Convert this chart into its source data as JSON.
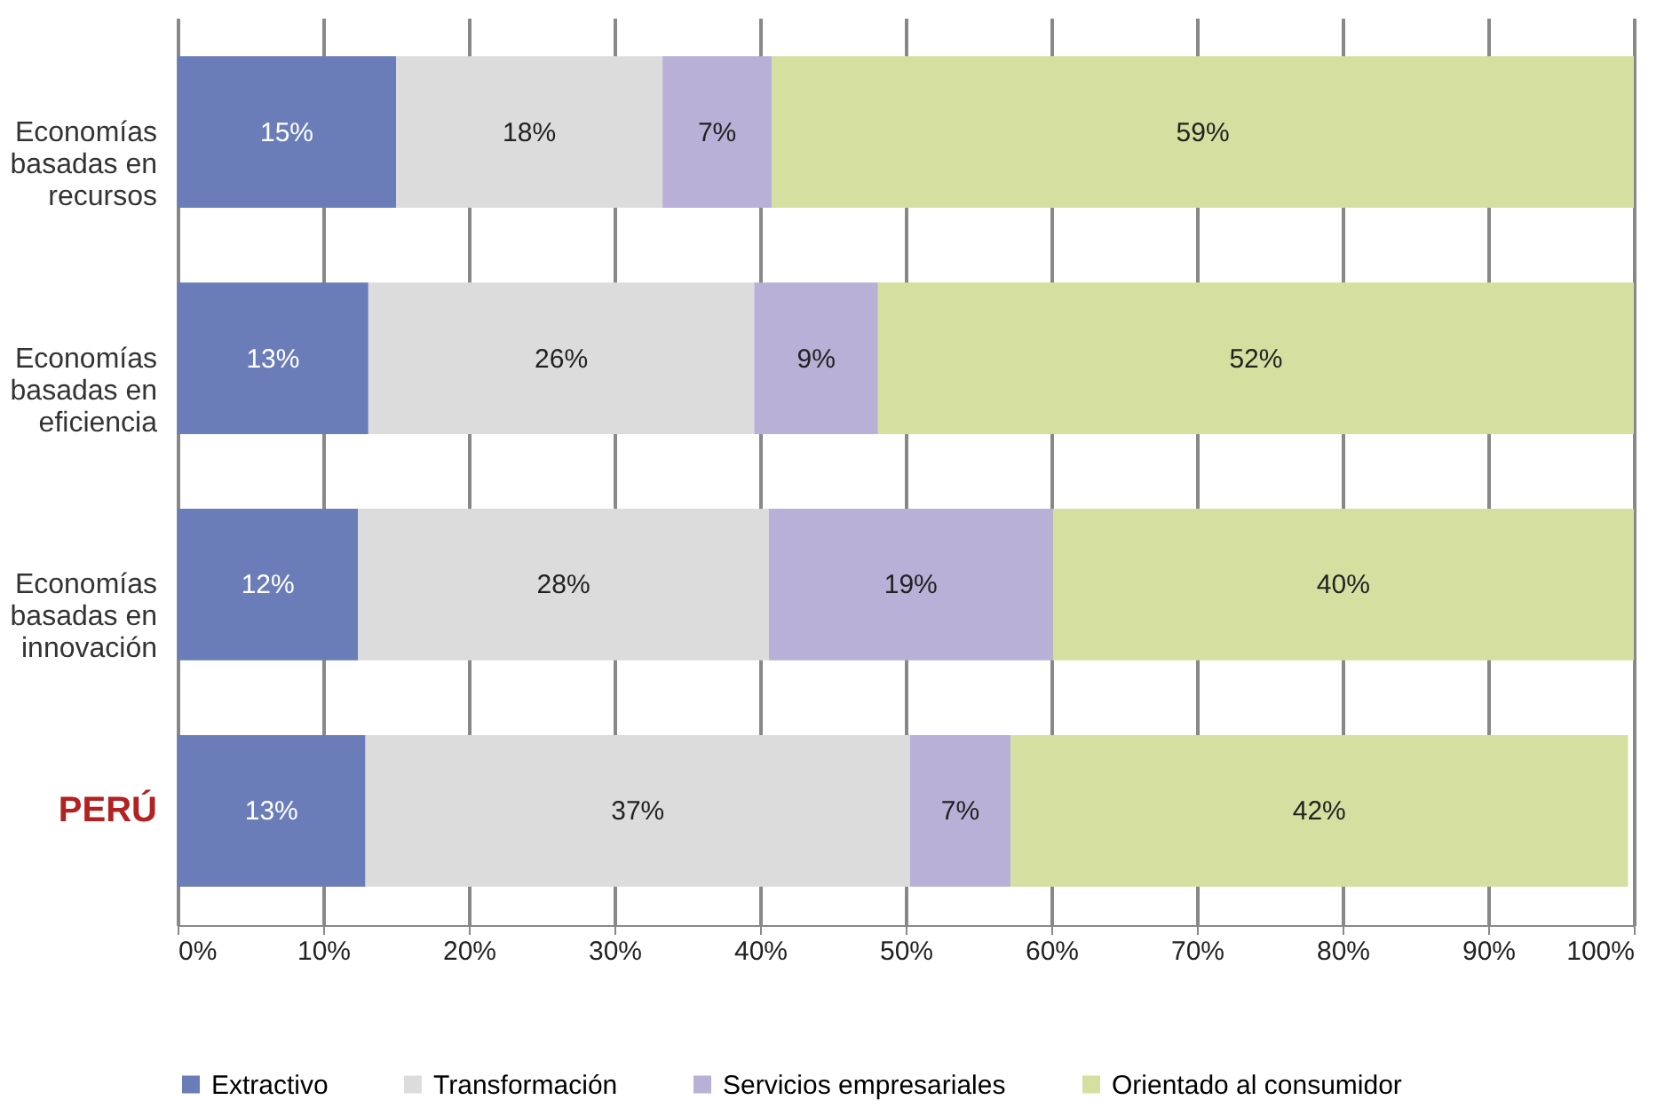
{
  "chart_data": {
    "type": "bar",
    "orientation": "horizontal",
    "stacked": true,
    "categories": [
      "Economías basadas en recursos",
      "Economías basadas en eficiencia",
      "Economías basadas en innovación",
      "PERÚ"
    ],
    "series": [
      {
        "name": "Extractivo",
        "color": "#6a7db8",
        "values": [
          15.0,
          13.1,
          12.4,
          12.9
        ],
        "value_labels": [
          "15%",
          "13%",
          "12%",
          "13%"
        ]
      },
      {
        "name": "Transformación",
        "color": "#dcdcdc",
        "values": [
          18.3,
          26.5,
          28.2,
          37.4
        ],
        "value_labels": [
          "18%",
          "26%",
          "28%",
          "37%"
        ]
      },
      {
        "name": "Servicios empresariales",
        "color": "#b8b0d6",
        "values": [
          7.5,
          8.5,
          19.5,
          6.9
        ],
        "value_labels": [
          "7%",
          "9%",
          "19%",
          "7%"
        ]
      },
      {
        "name": "Orientado al consumidor",
        "color": "#d5e0a0",
        "values": [
          59.2,
          51.9,
          39.9,
          42.4
        ],
        "value_labels": [
          "59%",
          "52%",
          "40%",
          "42%"
        ]
      }
    ],
    "xlim": [
      0,
      100
    ],
    "xticks": [
      {
        "value": 0,
        "label": "0%"
      },
      {
        "value": 10,
        "label": "10%"
      },
      {
        "value": 20,
        "label": "20%"
      },
      {
        "value": 30,
        "label": "30%"
      },
      {
        "value": 40,
        "label": "40%"
      },
      {
        "value": 50,
        "label": "50%"
      },
      {
        "value": 60,
        "label": "60%"
      },
      {
        "value": 70,
        "label": "70%"
      },
      {
        "value": 80,
        "label": "80%"
      },
      {
        "value": 90,
        "label": "90%"
      },
      {
        "value": 100,
        "label": "100%"
      }
    ],
    "grid": "x",
    "legend": "bottom"
  }
}
